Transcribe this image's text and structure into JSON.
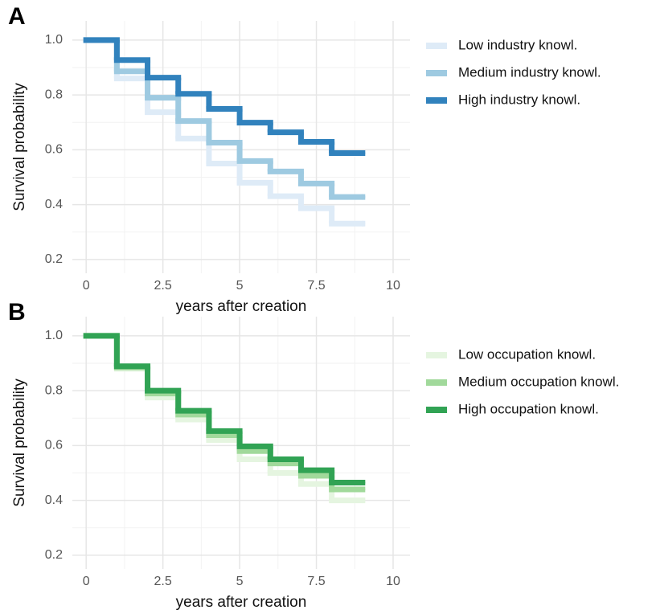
{
  "chart_data": [
    {
      "type": "step",
      "panel_label": "A",
      "xlabel": "years after creation",
      "ylabel": "Survival probability",
      "x": [
        0,
        1,
        2,
        3,
        4,
        5,
        6,
        7,
        8,
        9
      ],
      "series": [
        {
          "name": "Low industry knowl.",
          "color": "#deebf7",
          "values": [
            1.0,
            0.86,
            0.737,
            0.641,
            0.55,
            0.48,
            0.431,
            0.387,
            0.331,
            0.331
          ]
        },
        {
          "name": "Medium industry knowl.",
          "color": "#9ecae1",
          "values": [
            1.0,
            0.886,
            0.79,
            0.705,
            0.626,
            0.559,
            0.521,
            0.477,
            0.428,
            0.428
          ]
        },
        {
          "name": "High industry knowl.",
          "color": "#3182bd",
          "values": [
            1.0,
            0.927,
            0.863,
            0.804,
            0.749,
            0.699,
            0.664,
            0.629,
            0.588,
            0.588
          ]
        }
      ],
      "xlim": [
        -0.45,
        10.55
      ],
      "xticks": [
        0,
        2.5,
        5,
        7.5,
        10
      ],
      "ylim": [
        0.15,
        1.07
      ],
      "yticks": [
        0.2,
        0.4,
        0.6,
        0.8,
        {
          "value": 1.0,
          "label": "1.0"
        }
      ],
      "grid": true
    },
    {
      "type": "step",
      "panel_label": "B",
      "xlabel": "years after creation",
      "ylabel": "Survival probability",
      "x": [
        0,
        1,
        2,
        3,
        4,
        5,
        6,
        7,
        8,
        9
      ],
      "series": [
        {
          "name": "Low occupation knowl.",
          "color": "#e5f5e0",
          "values": [
            1.0,
            0.88,
            0.775,
            0.695,
            0.62,
            0.55,
            0.5,
            0.46,
            0.4,
            0.4
          ]
        },
        {
          "name": "Medium occupation knowl.",
          "color": "#a1d99b",
          "values": [
            1.0,
            0.885,
            0.79,
            0.713,
            0.638,
            0.58,
            0.535,
            0.49,
            0.44,
            0.44
          ]
        },
        {
          "name": "High occupation knowl.",
          "color": "#31a354",
          "values": [
            1.0,
            0.889,
            0.8,
            0.727,
            0.653,
            0.597,
            0.55,
            0.51,
            0.465,
            0.465
          ]
        }
      ],
      "xlim": [
        -0.45,
        10.55
      ],
      "xticks": [
        0,
        2.5,
        5,
        7.5,
        10
      ],
      "ylim": [
        0.15,
        1.07
      ],
      "yticks": [
        0.2,
        0.4,
        0.6,
        0.8,
        {
          "value": 1.0,
          "label": "1.0"
        }
      ],
      "grid": true
    }
  ]
}
